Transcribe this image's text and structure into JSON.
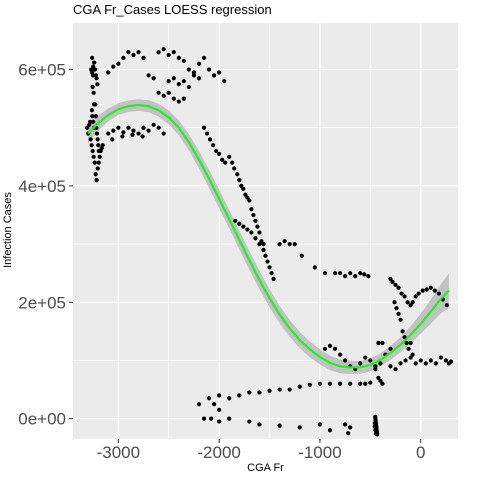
{
  "chart_data": {
    "type": "scatter",
    "title": "CGA Fr_Cases LOESS regression",
    "xlabel": "CGA Fr",
    "ylabel": "Infection Cases",
    "xlim": [
      -3450,
      370
    ],
    "ylim": [
      -35000,
      680000
    ],
    "x_ticks": [
      -3000,
      -2000,
      -1000,
      0
    ],
    "x_tick_labels": [
      "-3000",
      "-2000",
      "-1000",
      "0"
    ],
    "y_ticks": [
      0,
      200000,
      400000,
      600000
    ],
    "y_tick_labels": [
      "0e+00",
      "2e+05",
      "4e+05",
      "6e+05"
    ],
    "grid": true,
    "background": "#ebebeb",
    "colors": {
      "points": "#000000",
      "smooth_line": "#22ee22",
      "confidence_band": "#c2c2c2",
      "grid": "#ffffff"
    },
    "points": [
      [
        -3270,
        600000
      ],
      [
        -3260,
        620000
      ],
      [
        -3250,
        590000
      ],
      [
        -3255,
        570000
      ],
      [
        -3245,
        560000
      ],
      [
        -3240,
        540000
      ],
      [
        -3262,
        530000
      ],
      [
        -3258,
        520000
      ],
      [
        -3250,
        510000
      ],
      [
        -3240,
        500000
      ],
      [
        -3300,
        490000
      ],
      [
        -3310,
        500000
      ],
      [
        -3290,
        505000
      ],
      [
        -3280,
        510000
      ],
      [
        -3275,
        480000
      ],
      [
        -3265,
        470000
      ],
      [
        -3255,
        460000
      ],
      [
        -3245,
        450000
      ],
      [
        -3235,
        440000
      ],
      [
        -3225,
        420000
      ],
      [
        -3215,
        410000
      ],
      [
        -3205,
        430000
      ],
      [
        -3195,
        440000
      ],
      [
        -3185,
        450000
      ],
      [
        -3175,
        460000
      ],
      [
        -3165,
        465000
      ],
      [
        -3155,
        470000
      ],
      [
        -3260,
        595000
      ],
      [
        -3250,
        605000
      ],
      [
        -3240,
        612000
      ],
      [
        -3232,
        600000
      ],
      [
        -3224,
        590000
      ],
      [
        -3216,
        585000
      ],
      [
        -3208,
        575000
      ],
      [
        -3228,
        540000
      ],
      [
        -3222,
        520000
      ],
      [
        -3218,
        500000
      ],
      [
        -3212,
        490000
      ],
      [
        -3206,
        480000
      ],
      [
        -3200,
        470000
      ],
      [
        -3194,
        460000
      ],
      [
        -3100,
        490000
      ],
      [
        -3050,
        495000
      ],
      [
        -3000,
        500000
      ],
      [
        -2950,
        492000
      ],
      [
        -2900,
        500000
      ],
      [
        -2850,
        495000
      ],
      [
        -2800,
        490000
      ],
      [
        -2750,
        500000
      ],
      [
        -2700,
        495000
      ],
      [
        -2650,
        505000
      ],
      [
        -2600,
        500000
      ],
      [
        -2550,
        490000
      ],
      [
        -3060,
        480000
      ],
      [
        -2960,
        485000
      ],
      [
        -2860,
        488000
      ],
      [
        -2760,
        485000
      ],
      [
        -3000,
        610000
      ],
      [
        -2950,
        620000
      ],
      [
        -2900,
        630000
      ],
      [
        -2850,
        625000
      ],
      [
        -2800,
        630000
      ],
      [
        -2750,
        620000
      ],
      [
        -3100,
        595000
      ],
      [
        -3050,
        605000
      ],
      [
        -2600,
        630000
      ],
      [
        -2550,
        635000
      ],
      [
        -2500,
        625000
      ],
      [
        -2450,
        630000
      ],
      [
        -2400,
        620000
      ],
      [
        -2350,
        615000
      ],
      [
        -2300,
        600000
      ],
      [
        -2250,
        595000
      ],
      [
        -2200,
        610000
      ],
      [
        -2150,
        620000
      ],
      [
        -2100,
        600000
      ],
      [
        -2050,
        590000
      ],
      [
        -2000,
        595000
      ],
      [
        -1950,
        580000
      ],
      [
        -2500,
        580000
      ],
      [
        -2450,
        585000
      ],
      [
        -2400,
        575000
      ],
      [
        -2350,
        580000
      ],
      [
        -2300,
        570000
      ],
      [
        -2250,
        590000
      ],
      [
        -2200,
        585000
      ],
      [
        -2600,
        560000
      ],
      [
        -2550,
        555000
      ],
      [
        -2500,
        560000
      ],
      [
        -2450,
        550000
      ],
      [
        -2400,
        545000
      ],
      [
        -2350,
        550000
      ],
      [
        -2700,
        590000
      ],
      [
        -2650,
        585000
      ],
      [
        -2150,
        500000
      ],
      [
        -2120,
        490000
      ],
      [
        -2090,
        480000
      ],
      [
        -2060,
        470000
      ],
      [
        -2030,
        460000
      ],
      [
        -2000,
        455000
      ],
      [
        -1970,
        445000
      ],
      [
        -1940,
        440000
      ],
      [
        -1900,
        450000
      ],
      [
        -1870,
        440000
      ],
      [
        -1850,
        430000
      ],
      [
        -1820,
        420000
      ],
      [
        -1800,
        410000
      ],
      [
        -1780,
        400000
      ],
      [
        -1760,
        395000
      ],
      [
        -1740,
        385000
      ],
      [
        -1720,
        380000
      ],
      [
        -1700,
        375000
      ],
      [
        -1680,
        360000
      ],
      [
        -1660,
        350000
      ],
      [
        -1640,
        340000
      ],
      [
        -1620,
        330000
      ],
      [
        -1600,
        320000
      ],
      [
        -1580,
        305000
      ],
      [
        -1560,
        290000
      ],
      [
        -1540,
        280000
      ],
      [
        -1520,
        270000
      ],
      [
        -1500,
        260000
      ],
      [
        -1480,
        250000
      ],
      [
        -1460,
        240000
      ],
      [
        -1840,
        340000
      ],
      [
        -1800,
        335000
      ],
      [
        -1760,
        330000
      ],
      [
        -1720,
        325000
      ],
      [
        -1680,
        320000
      ],
      [
        -1640,
        310000
      ],
      [
        -1600,
        300000
      ],
      [
        -1560,
        300000
      ],
      [
        -1400,
        300000
      ],
      [
        -1350,
        305000
      ],
      [
        -1300,
        300000
      ],
      [
        -1250,
        300000
      ],
      [
        -1180,
        280000
      ],
      [
        -1050,
        260000
      ],
      [
        -950,
        250000
      ],
      [
        -850,
        250000
      ],
      [
        -800,
        250000
      ],
      [
        -750,
        245000
      ],
      [
        -700,
        250000
      ],
      [
        -650,
        245000
      ],
      [
        -600,
        250000
      ],
      [
        -560,
        248000
      ],
      [
        -520,
        245000
      ],
      [
        -300,
        240000
      ],
      [
        -280,
        235000
      ],
      [
        -250,
        230000
      ],
      [
        -220,
        225000
      ],
      [
        -190,
        215000
      ],
      [
        -160,
        210000
      ],
      [
        -130,
        200000
      ],
      [
        -100,
        195000
      ],
      [
        -80,
        200000
      ],
      [
        -50,
        210000
      ],
      [
        -20,
        215000
      ],
      [
        20,
        220000
      ],
      [
        60,
        222000
      ],
      [
        100,
        225000
      ],
      [
        140,
        220000
      ],
      [
        180,
        215000
      ],
      [
        220,
        205000
      ],
      [
        260,
        195000
      ],
      [
        -260,
        200000
      ],
      [
        -240,
        190000
      ],
      [
        -220,
        180000
      ],
      [
        -200,
        170000
      ],
      [
        -180,
        150000
      ],
      [
        -160,
        140000
      ],
      [
        -140,
        130000
      ],
      [
        -120,
        120000
      ],
      [
        -100,
        130000
      ],
      [
        -80,
        110000
      ],
      [
        -300,
        120000
      ],
      [
        -350,
        110000
      ],
      [
        -400,
        95000
      ],
      [
        -450,
        90000
      ],
      [
        -500,
        100000
      ],
      [
        -550,
        105000
      ],
      [
        -600,
        95000
      ],
      [
        -650,
        85000
      ],
      [
        -700,
        90000
      ],
      [
        -750,
        100000
      ],
      [
        -800,
        110000
      ],
      [
        -850,
        120000
      ],
      [
        -900,
        125000
      ],
      [
        -950,
        120000
      ],
      [
        -420,
        130000
      ],
      [
        -380,
        130000
      ],
      [
        -300,
        90000
      ],
      [
        -250,
        85000
      ],
      [
        -200,
        95000
      ],
      [
        -150,
        100000
      ],
      [
        -100,
        105000
      ],
      [
        -50,
        95000
      ],
      [
        0,
        100000
      ],
      [
        50,
        95000
      ],
      [
        100,
        100000
      ],
      [
        150,
        95000
      ],
      [
        200,
        105000
      ],
      [
        250,
        100000
      ],
      [
        280,
        95000
      ],
      [
        300,
        98000
      ],
      [
        -450,
        85000
      ],
      [
        -420,
        70000
      ],
      [
        -400,
        65000
      ],
      [
        -380,
        60000
      ],
      [
        -500,
        62000
      ],
      [
        -550,
        60000
      ],
      [
        -600,
        60000
      ],
      [
        -700,
        60000
      ],
      [
        -800,
        60000
      ],
      [
        -900,
        60000
      ],
      [
        -1000,
        60000
      ],
      [
        -1100,
        58000
      ],
      [
        -1200,
        55000
      ],
      [
        -1300,
        50000
      ],
      [
        -1400,
        50000
      ],
      [
        -1500,
        48000
      ],
      [
        -1600,
        45000
      ],
      [
        -1700,
        45000
      ],
      [
        -1800,
        40000
      ],
      [
        -1900,
        35000
      ],
      [
        -2000,
        40000
      ],
      [
        -2100,
        35000
      ],
      [
        -2200,
        25000
      ],
      [
        -2050,
        25000
      ],
      [
        -2000,
        15000
      ],
      [
        -2080,
        0
      ],
      [
        -2150,
        0
      ],
      [
        -2000,
        -5000
      ],
      [
        -1900,
        0
      ],
      [
        -1700,
        -5000
      ],
      [
        -1600,
        -10000
      ],
      [
        -1400,
        -12000
      ],
      [
        -1200,
        -15000
      ],
      [
        -1000,
        -10000
      ],
      [
        -900,
        -20000
      ],
      [
        -750,
        -10000
      ],
      [
        -700,
        -15000
      ],
      [
        -720,
        -25000
      ],
      [
        -450,
        0
      ],
      [
        -448,
        -3000
      ],
      [
        -446,
        -6000
      ],
      [
        -444,
        -9000
      ],
      [
        -442,
        -12000
      ],
      [
        -440,
        -15000
      ],
      [
        -438,
        -18000
      ],
      [
        -436,
        -21000
      ],
      [
        -434,
        -24000
      ],
      [
        -432,
        -27000
      ],
      [
        -452,
        3000
      ],
      [
        -454,
        -8000
      ],
      [
        -456,
        -14000
      ],
      [
        -450,
        -20000
      ],
      [
        -445,
        -26000
      ]
    ],
    "smooth_line": [
      [
        -3300,
        490000
      ],
      [
        -3200,
        508000
      ],
      [
        -3100,
        522000
      ],
      [
        -3000,
        532000
      ],
      [
        -2900,
        537000
      ],
      [
        -2800,
        539000
      ],
      [
        -2700,
        537000
      ],
      [
        -2600,
        530000
      ],
      [
        -2500,
        518000
      ],
      [
        -2400,
        500000
      ],
      [
        -2300,
        475000
      ],
      [
        -2200,
        445000
      ],
      [
        -2100,
        412000
      ],
      [
        -2000,
        378000
      ],
      [
        -1900,
        343000
      ],
      [
        -1800,
        307000
      ],
      [
        -1700,
        272000
      ],
      [
        -1600,
        238000
      ],
      [
        -1500,
        207000
      ],
      [
        -1400,
        179000
      ],
      [
        -1300,
        155000
      ],
      [
        -1200,
        135000
      ],
      [
        -1100,
        119000
      ],
      [
        -1000,
        106000
      ],
      [
        -900,
        96000
      ],
      [
        -800,
        90000
      ],
      [
        -700,
        88000
      ],
      [
        -600,
        88000
      ],
      [
        -500,
        92000
      ],
      [
        -400,
        101000
      ],
      [
        -300,
        113000
      ],
      [
        -200,
        127000
      ],
      [
        -100,
        144000
      ],
      [
        0,
        163000
      ],
      [
        100,
        184000
      ],
      [
        200,
        206000
      ],
      [
        280,
        220000
      ]
    ],
    "band_halfwidth": [
      [
        -3300,
        18000
      ],
      [
        -3200,
        13000
      ],
      [
        -3100,
        11000
      ],
      [
        -3000,
        10000
      ],
      [
        -2800,
        10000
      ],
      [
        -2600,
        11000
      ],
      [
        -2400,
        13000
      ],
      [
        -2200,
        15000
      ],
      [
        -2000,
        16000
      ],
      [
        -1800,
        16000
      ],
      [
        -1600,
        16000
      ],
      [
        -1400,
        15000
      ],
      [
        -1200,
        14000
      ],
      [
        -1000,
        13000
      ],
      [
        -800,
        12000
      ],
      [
        -600,
        11000
      ],
      [
        -400,
        11000
      ],
      [
        -200,
        13000
      ],
      [
        0,
        17000
      ],
      [
        200,
        25000
      ],
      [
        280,
        30000
      ]
    ]
  }
}
